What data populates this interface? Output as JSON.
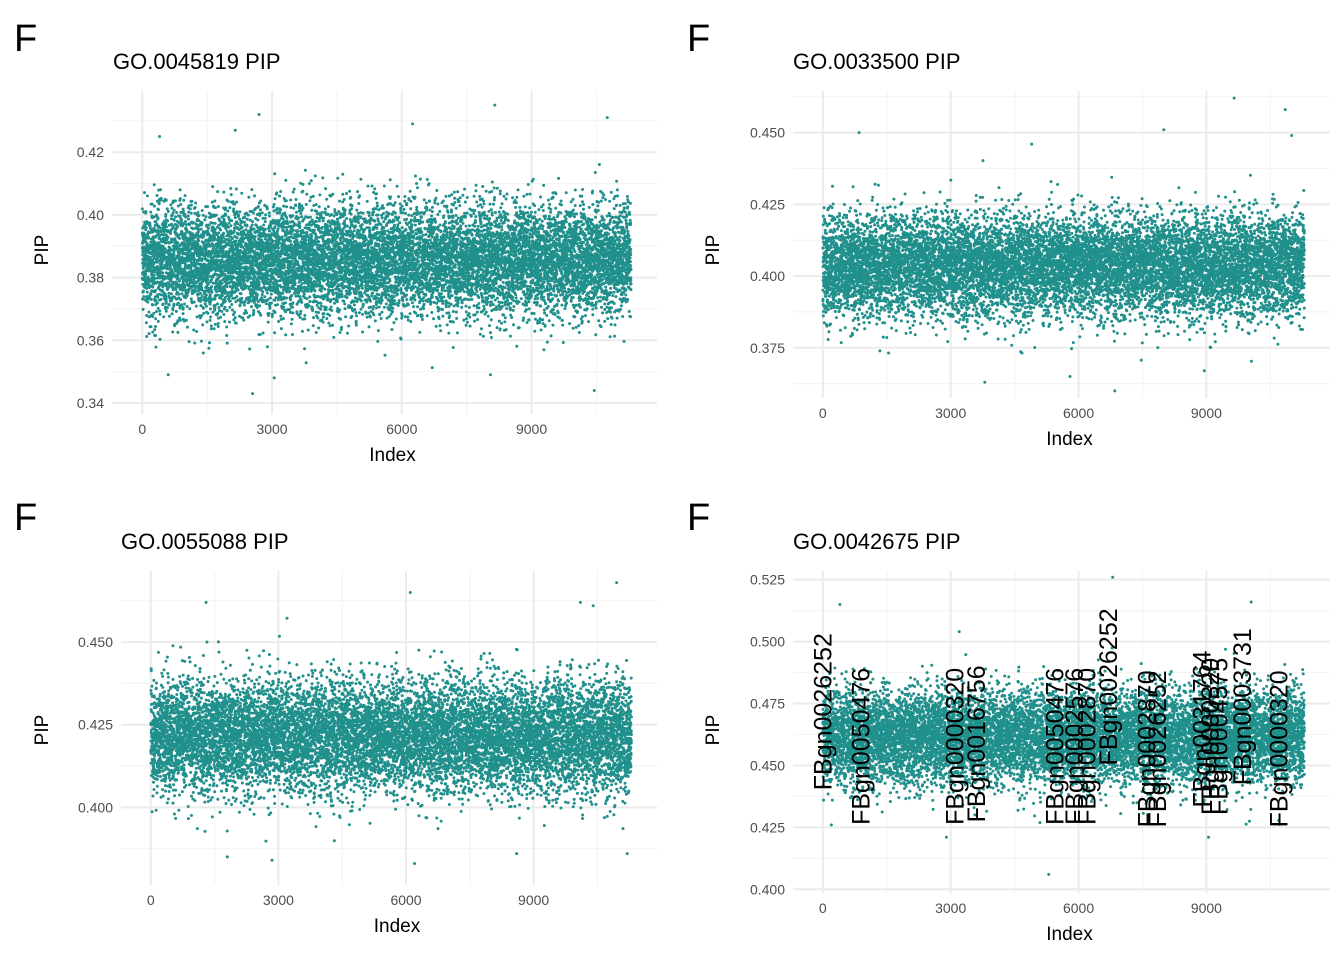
{
  "chart_data": [
    {
      "type": "scatter",
      "panel_label": "F",
      "title": "GO.0045819 PIP",
      "xlabel": "Index",
      "ylabel": "PIP",
      "xlim": [
        -700,
        11900
      ],
      "ylim": [
        0.3365,
        0.4395
      ],
      "xticks": [
        0,
        3000,
        6000,
        9000
      ],
      "xtick_labels": [
        "0",
        "3000",
        "6000",
        "9000"
      ],
      "yticks": [
        0.34,
        0.36,
        0.38,
        0.4,
        0.42
      ],
      "ytick_labels": [
        "0.34",
        "0.36",
        "0.38",
        "0.40",
        "0.42"
      ],
      "n_points": 11300,
      "point_color": "#21908C",
      "grid": true,
      "distribution": {
        "center": 0.3855,
        "sd": 0.0088
      },
      "outliers": [
        [
          2700,
          0.432
        ],
        [
          8150,
          0.435
        ],
        [
          10750,
          0.431
        ],
        [
          6250,
          0.429
        ],
        [
          2150,
          0.427
        ],
        [
          400,
          0.425
        ],
        [
          10450,
          0.344
        ],
        [
          2550,
          0.343
        ],
        [
          600,
          0.349
        ],
        [
          8050,
          0.349
        ],
        [
          3050,
          0.348
        ]
      ],
      "labels": []
    },
    {
      "type": "scatter",
      "panel_label": "F",
      "title": "GO.0033500 PIP",
      "xlabel": "Index",
      "ylabel": "PIP",
      "xlim": [
        -700,
        11900
      ],
      "ylim": [
        0.3575,
        0.4645
      ],
      "xticks": [
        0,
        3000,
        6000,
        9000
      ],
      "xtick_labels": [
        "0",
        "3000",
        "6000",
        "9000"
      ],
      "yticks": [
        0.375,
        0.4,
        0.425,
        0.45
      ],
      "ytick_labels": [
        "0.375",
        "0.400",
        "0.425",
        "0.450"
      ],
      "n_points": 11300,
      "point_color": "#21908C",
      "grid": true,
      "distribution": {
        "center": 0.4035,
        "sd": 0.0088
      },
      "outliers": [
        [
          9650,
          0.462
        ],
        [
          10850,
          0.458
        ],
        [
          850,
          0.45
        ],
        [
          8000,
          0.451
        ],
        [
          11000,
          0.449
        ],
        [
          4900,
          0.446
        ],
        [
          6850,
          0.36
        ],
        [
          3800,
          0.363
        ],
        [
          5800,
          0.365
        ],
        [
          8950,
          0.367
        ]
      ],
      "labels": []
    },
    {
      "type": "scatter",
      "panel_label": "F",
      "title": "GO.0055088 PIP",
      "xlabel": "Index",
      "ylabel": "PIP",
      "xlim": [
        -700,
        11900
      ],
      "ylim": [
        0.3765,
        0.4715
      ],
      "xticks": [
        0,
        3000,
        6000,
        9000
      ],
      "xtick_labels": [
        "0",
        "3000",
        "6000",
        "9000"
      ],
      "yticks": [
        0.4,
        0.425,
        0.45
      ],
      "ytick_labels": [
        "0.400",
        "0.425",
        "0.450"
      ],
      "n_points": 11300,
      "point_color": "#21908C",
      "grid": true,
      "distribution": {
        "center": 0.4215,
        "sd": 0.0085
      },
      "outliers": [
        [
          10950,
          0.468
        ],
        [
          6100,
          0.465
        ],
        [
          1300,
          0.462
        ],
        [
          10400,
          0.461
        ],
        [
          10100,
          0.462
        ],
        [
          2850,
          0.384
        ],
        [
          6200,
          0.383
        ],
        [
          1800,
          0.385
        ],
        [
          8600,
          0.386
        ],
        [
          11200,
          0.386
        ]
      ],
      "labels": []
    },
    {
      "type": "scatter",
      "panel_label": "F",
      "title": "GO.0042675 PIP",
      "xlabel": "Index",
      "ylabel": "PIP",
      "xlim": [
        -700,
        11900
      ],
      "ylim": [
        0.3985,
        0.5285
      ],
      "xticks": [
        0,
        3000,
        6000,
        9000
      ],
      "xtick_labels": [
        "0",
        "3000",
        "6000",
        "9000"
      ],
      "yticks": [
        0.4,
        0.425,
        0.45,
        0.475,
        0.5,
        0.525
      ],
      "ytick_labels": [
        "0.400",
        "0.425",
        "0.450",
        "0.475",
        "0.500",
        "0.525"
      ],
      "n_points": 11300,
      "point_color": "#21908C",
      "grid": true,
      "distribution": {
        "center": 0.4615,
        "sd": 0.0095
      },
      "outliers": [
        [
          6800,
          0.526
        ],
        [
          10050,
          0.516
        ],
        [
          400,
          0.515
        ],
        [
          3200,
          0.504
        ],
        [
          5300,
          0.406
        ],
        [
          200,
          0.426
        ],
        [
          2900,
          0.421
        ],
        [
          9050,
          0.421
        ]
      ],
      "labels": [
        {
          "text": "FBgn0026252",
          "x": 200,
          "y": 0.44
        },
        {
          "text": "FBgn0050476",
          "x": 1100,
          "y": 0.426
        },
        {
          "text": "FBgn0000320",
          "x": 3300,
          "y": 0.426
        },
        {
          "text": "FBgn0016756",
          "x": 3800,
          "y": 0.427
        },
        {
          "text": "FBgn0050476",
          "x": 5650,
          "y": 0.426
        },
        {
          "text": "FBgn0002576",
          "x": 6100,
          "y": 0.426
        },
        {
          "text": "FBgn0002870",
          "x": 6400,
          "y": 0.426
        },
        {
          "text": "FBgn0026252",
          "x": 6900,
          "y": 0.45
        },
        {
          "text": "FBgn0002870",
          "x": 7800,
          "y": 0.425
        },
        {
          "text": "FBgn0026252",
          "x": 8050,
          "y": 0.425
        },
        {
          "text": "FBgn0031764",
          "x": 9100,
          "y": 0.433
        },
        {
          "text": "FBgn0000320",
          "x": 9300,
          "y": 0.43
        },
        {
          "text": "FBgn0004575",
          "x": 9500,
          "y": 0.43
        },
        {
          "text": "FBgn0003731",
          "x": 10050,
          "y": 0.442
        },
        {
          "text": "FBgn0000320",
          "x": 10900,
          "y": 0.425
        }
      ]
    }
  ]
}
